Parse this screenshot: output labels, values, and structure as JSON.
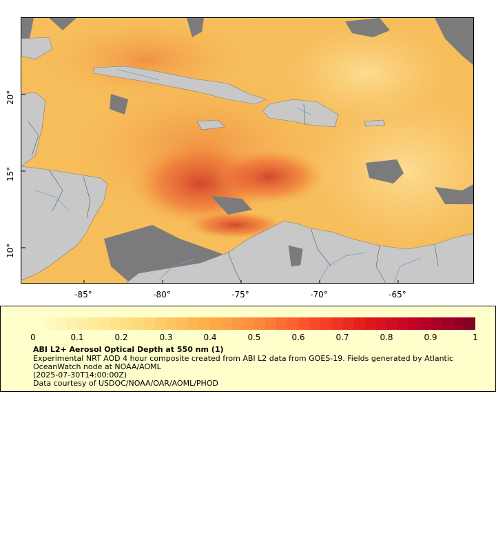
{
  "map": {
    "longitude_ticks": [
      "-85°",
      "-80°",
      "-75°",
      "-70°",
      "-65°"
    ],
    "latitude_ticks": [
      "20°",
      "15°",
      "10°"
    ]
  },
  "legend": {
    "scale_labels": [
      "0",
      "0.1",
      "0.2",
      "0.3",
      "0.4",
      "0.5",
      "0.6",
      "0.7",
      "0.8",
      "0.9",
      "1"
    ],
    "title": "ABI L2+ Aerosol Optical Depth at 550 nm (1)",
    "description_line1": "Experimental NRT AOD 4 hour composite created from ABI L2 data from GOES-19. Fields generated by Atlantic",
    "description_line2": "OceanWatch node at NOAA/AOML",
    "timestamp": "(2025-07-30T14:00:00Z)",
    "credit": "Data courtesy of USDOC/NOAA/OAR/AOML/PHOD"
  },
  "colors": {
    "land": "#c8c8c8",
    "no_data": "#808080",
    "rivers": "#6f9fd8",
    "borders": "#555555",
    "colorbar_start": "#ffffcc",
    "colorbar_end": "#800026"
  }
}
